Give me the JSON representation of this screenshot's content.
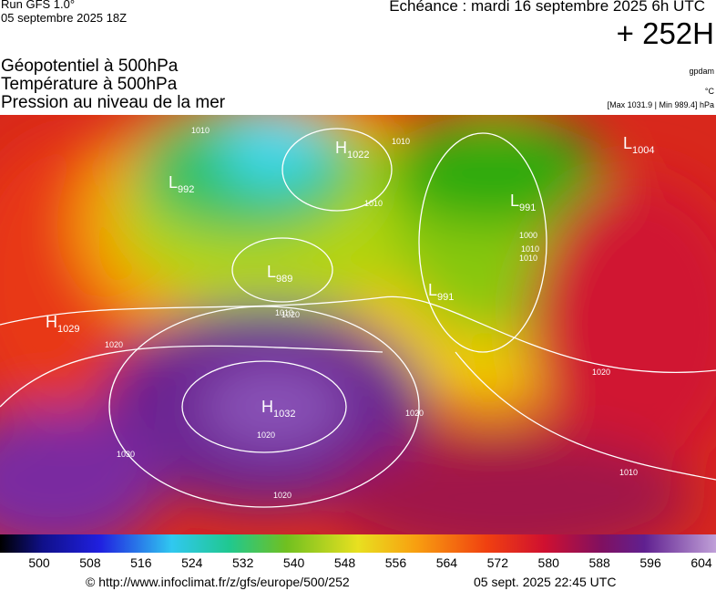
{
  "header": {
    "run": "Run GFS 1.0°",
    "run_date": "05 septembre 2025 18Z",
    "echeance": "Echéance : mardi 16 septembre 2025 6h UTC",
    "lead": "+ 252H"
  },
  "titles": [
    "Géopotentiel à 500hPa",
    "Température à 500hPa",
    "Pression au niveau de la mer"
  ],
  "units": {
    "geopotential": "gpdam",
    "temperature": "°C",
    "pressure": "[Max 1031.9 | Min 989.4] hPa"
  },
  "pressure_centers": [
    {
      "letter": "H",
      "value": "1022"
    },
    {
      "letter": "L",
      "value": "992"
    },
    {
      "letter": "L",
      "value": "989"
    },
    {
      "letter": "H",
      "value": "1029"
    },
    {
      "letter": "H",
      "value": "1032"
    },
    {
      "letter": "L",
      "value": "991"
    },
    {
      "letter": "L",
      "value": "991"
    },
    {
      "letter": "L",
      "value": "1004"
    }
  ],
  "isobar_labels": [
    "1010",
    "1010",
    "1020",
    "1020",
    "1030",
    "1020",
    "1020",
    "1020",
    "1010",
    "1010",
    "1020",
    "1010",
    "1000",
    "1010",
    "1010"
  ],
  "scale": {
    "labels": [
      500,
      508,
      516,
      524,
      532,
      540,
      548,
      556,
      564,
      572,
      580,
      588,
      596,
      604
    ]
  },
  "footer": {
    "source": "© http://www.infoclimat.fr/z/gfs/europe/500/252",
    "timestamp": "05 sept. 2025 22:45 UTC"
  }
}
